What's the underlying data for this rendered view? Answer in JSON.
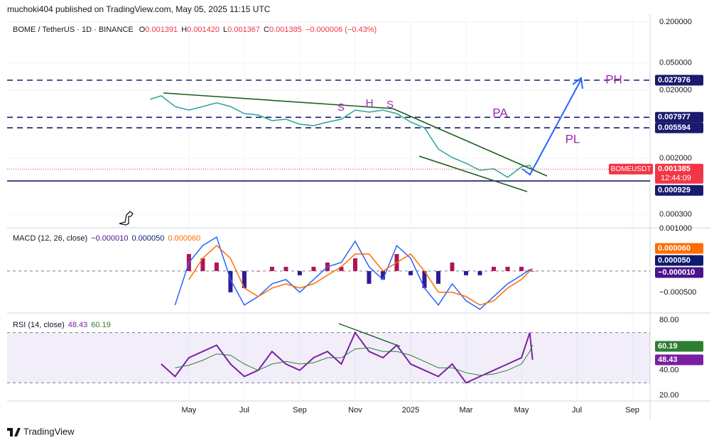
{
  "header": {
    "publisher": "muchoki404 published on TradingView.com, May 05, 2025 11:15 UTC",
    "symbol": "BOME / TetherUS · 1D · BINANCE",
    "ohlc": [
      {
        "label": "O",
        "value": "0.001391"
      },
      {
        "label": "H",
        "value": "0.001420"
      },
      {
        "label": "L",
        "value": "0.001367"
      },
      {
        "label": "C",
        "value": "0.001385"
      }
    ],
    "change": "−0.000006 (−0.43%)"
  },
  "chart_data": [
    {
      "type": "line",
      "log_scale": true,
      "grid": true,
      "x": [
        2.6,
        3.0,
        3.5,
        4.0,
        4.5,
        5.0,
        5.5,
        6.0,
        6.5,
        7.0,
        7.5,
        8.0,
        8.5,
        9.0,
        9.5,
        10.0,
        10.5,
        11.0,
        11.5,
        12.0,
        12.5,
        13.0,
        13.5,
        14.0,
        14.5,
        15.0,
        15.5,
        16.0,
        16.3,
        16.4
      ],
      "series": [
        {
          "name": "BOMEUSDT",
          "color": "#26a69a",
          "label_color": "#f23645",
          "values": [
            0.01466,
            0.01652,
            0.0115,
            0.0102,
            0.0115,
            0.013,
            0.0115,
            0.00906,
            0.00863,
            0.00713,
            0.00748,
            0.00632,
            0.00603,
            0.0068,
            0.00748,
            0.0102,
            0.00951,
            0.0102,
            0.00906,
            0.0068,
            0.00561,
            0.00273,
            0.00205,
            0.00169,
            0.00133,
            0.0014,
            0.00105,
            0.0015,
            0.00157,
            0.001385
          ]
        }
      ],
      "ylim": [
        0.000195,
        0.231
      ],
      "yticks": [
        {
          "value": 0.2,
          "label": "0.200000"
        },
        {
          "value": 0.05,
          "label": "0.050000"
        },
        {
          "value": 0.02,
          "label": "0.020000"
        },
        {
          "value": 0.002,
          "label": "0.002000"
        },
        {
          "value": 0.0003,
          "label": "0.000300"
        }
      ],
      "xlim": [
        -2.56,
        20.64
      ],
      "xticks": [
        {
          "value": 4,
          "label": "May"
        },
        {
          "value": 6,
          "label": "Jul"
        },
        {
          "value": 8,
          "label": "Sep"
        },
        {
          "value": 10,
          "label": "Nov"
        },
        {
          "value": 12,
          "label": "2025"
        },
        {
          "value": 14,
          "label": "Mar"
        },
        {
          "value": 16,
          "label": "May"
        },
        {
          "value": 18,
          "label": "Jul"
        },
        {
          "value": 20,
          "label": "Sep"
        }
      ],
      "levels": [
        0.027976,
        0.007977,
        0.005594,
        0.000929
      ],
      "level_color": "#1a1a6e",
      "countdown": "12:44:09",
      "annotations": [
        "S",
        "H",
        "S",
        "PA",
        "PL",
        "PH"
      ]
    },
    {
      "type": "macd",
      "title": "MACD (12, 26, close)",
      "x": [
        2.6,
        3.0,
        3.5,
        4.0,
        4.5,
        5.0,
        5.5,
        6.0,
        6.5,
        7.0,
        7.5,
        8.0,
        8.5,
        9.0,
        9.5,
        10.0,
        10.5,
        11.0,
        11.5,
        12.0,
        12.5,
        13.0,
        13.5,
        14.0,
        14.5,
        15.0,
        15.5,
        16.0,
        16.3,
        16.4
      ],
      "series": [
        {
          "kind": "histogram",
          "color": "#ad1457",
          "negative_color": "#311b92",
          "values": [
            null,
            null,
            null,
            0.0004,
            0.0003,
            0.0002,
            -0.0005,
            -0.0004,
            0,
            0.0001,
            0.0001,
            -0.0001,
            0.0001,
            0.0002,
            0.0001,
            0.0003,
            -0.0003,
            -0.0002,
            0.0004,
            -0.0001,
            -0.0004,
            -0.0003,
            0.0002,
            -0.0001,
            -0.0001,
            0.0001,
            0.0001,
            0.0001,
            3e-05,
            -1e-05
          ],
          "last_label": "−0.000010",
          "label_color": "#4a148c"
        },
        {
          "kind": "line",
          "color": "#2962ff",
          "values": [
            null,
            null,
            -0.0008,
            0.0002,
            0.0006,
            0.0008,
            -0.0002,
            -0.0008,
            -0.0006,
            -0.0003,
            -0.0002,
            -0.0005,
            -0.0002,
            0.0001,
            0.0002,
            0.0007,
            0.0001,
            -0.0002,
            0.0006,
            0.0003,
            -0.0004,
            -0.0008,
            -0.0003,
            -0.0007,
            -0.0009,
            -0.0006,
            -0.0003,
            -0.0001,
            3e-05,
            5e-05
          ],
          "last_label": "0.000050",
          "label_color": "#0d1b6e"
        },
        {
          "kind": "line",
          "color": "#ff6d00",
          "values": [
            null,
            null,
            null,
            -0.0002,
            0.0003,
            0.0006,
            0.0003,
            -0.0004,
            -0.0006,
            -0.0004,
            -0.0003,
            -0.0004,
            -0.0003,
            -0.0001,
            0.0001,
            0.0004,
            0.0004,
            0,
            0.0002,
            0.0004,
            0,
            -0.0005,
            -0.0005,
            -0.0006,
            -0.0008,
            -0.0007,
            -0.0004,
            -0.0002,
            0,
            6e-05
          ],
          "last_label": "0.000060",
          "label_color": "#ff6d00"
        }
      ],
      "ylim": [
        -0.00097,
        0.001
      ],
      "yticks": [
        {
          "value": 0.001,
          "label": "0.001000"
        },
        {
          "value": -0.0005,
          "label": "−0.000500"
        }
      ]
    },
    {
      "type": "rsi",
      "title": "RSI (14, close)",
      "x": [
        2.6,
        3.0,
        3.5,
        4.0,
        4.5,
        5.0,
        5.5,
        6.0,
        6.5,
        7.0,
        7.5,
        8.0,
        8.5,
        9.0,
        9.5,
        10.0,
        10.5,
        11.0,
        11.5,
        12.0,
        12.5,
        13.0,
        13.5,
        14.0,
        14.5,
        15.0,
        15.5,
        16.0,
        16.3,
        16.4
      ],
      "series": [
        {
          "color": "#7b1fa2",
          "values": [
            null,
            45,
            35,
            50,
            55,
            60,
            45,
            35,
            40,
            55,
            45,
            40,
            50,
            55,
            45,
            70,
            55,
            50,
            60,
            45,
            40,
            35,
            45,
            30,
            35,
            40,
            45,
            50,
            70,
            48.43
          ]
        },
        {
          "color": "#2e7d32",
          "values": [
            null,
            null,
            42,
            44,
            48,
            53,
            52,
            45,
            40,
            45,
            47,
            45,
            46,
            50,
            50,
            57,
            58,
            55,
            55,
            52,
            47,
            42,
            42,
            38,
            36,
            37,
            40,
            45,
            55,
            60.19
          ]
        }
      ],
      "ylim": [
        15.5,
        85.1
      ],
      "yticks": [
        {
          "value": 80,
          "label": "80.00"
        },
        {
          "value": 40,
          "label": "40.00"
        },
        {
          "value": 20,
          "label": "20.00"
        }
      ],
      "bands": [
        70,
        30
      ],
      "band_fill": "rgba(126,87,194,0.10)"
    }
  ],
  "footer": "TradingView"
}
